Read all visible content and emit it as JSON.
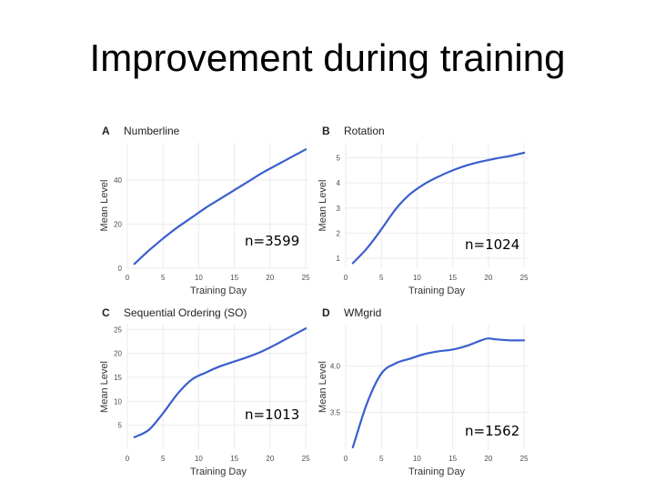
{
  "slide": {
    "title": "Improvement during training"
  },
  "accent_color": "#3a5fcd",
  "chart_data": [
    {
      "type": "line",
      "letter": "A",
      "title": "Numberline",
      "xlabel": "Training Day",
      "ylabel": "Mean Level",
      "xlim": [
        0,
        25.5
      ],
      "ylim": [
        0,
        57
      ],
      "xticks": [
        0,
        5,
        10,
        15,
        20,
        25
      ],
      "yticks": [
        0,
        20,
        40
      ],
      "grid": true,
      "annotation": "n=3599",
      "series": [
        {
          "x": [
            1,
            3,
            5,
            7,
            9,
            11,
            13,
            15,
            17,
            19,
            21,
            23,
            25
          ],
          "y": [
            2,
            8,
            13.5,
            18.5,
            23,
            27.5,
            31.5,
            35.5,
            39.5,
            43.5,
            47,
            50.5,
            54
          ]
        }
      ]
    },
    {
      "type": "line",
      "letter": "B",
      "title": "Rotation",
      "xlabel": "Training Day",
      "ylabel": "Mean Level",
      "xlim": [
        0,
        25.5
      ],
      "ylim": [
        0.6,
        5.6
      ],
      "xticks": [
        0,
        5,
        10,
        15,
        20,
        25
      ],
      "yticks": [
        1,
        2,
        3,
        4,
        5
      ],
      "grid": true,
      "annotation": "n=1024",
      "series": [
        {
          "x": [
            1,
            3,
            5,
            7,
            9,
            11,
            13,
            15,
            17,
            19,
            21,
            23,
            25
          ],
          "y": [
            0.8,
            1.4,
            2.15,
            2.95,
            3.55,
            3.95,
            4.25,
            4.5,
            4.7,
            4.85,
            4.97,
            5.07,
            5.2
          ]
        }
      ]
    },
    {
      "type": "line",
      "letter": "C",
      "title": "Sequential Ordering (SO)",
      "xlabel": "Training Day",
      "ylabel": "Mean Level",
      "xlim": [
        0,
        25.5
      ],
      "ylim": [
        0,
        26
      ],
      "xticks": [
        0,
        5,
        10,
        15,
        20,
        25
      ],
      "yticks": [
        5,
        10,
        15,
        20,
        25
      ],
      "grid": true,
      "annotation": "n=1013",
      "series": [
        {
          "x": [
            1,
            3,
            5,
            7,
            9,
            11,
            13,
            15,
            17,
            19,
            21,
            23,
            25
          ],
          "y": [
            2.5,
            4,
            7.5,
            11.5,
            14.5,
            16,
            17.3,
            18.3,
            19.3,
            20.5,
            22,
            23.6,
            25.2
          ]
        }
      ]
    },
    {
      "type": "line",
      "letter": "D",
      "title": "WMgrid",
      "xlabel": "Training Day",
      "ylabel": "Mean Level",
      "xlim": [
        0,
        25.5
      ],
      "ylim": [
        3.1,
        4.45
      ],
      "xticks": [
        0,
        5,
        10,
        15,
        20,
        25
      ],
      "yticks": [
        3.5,
        4.0
      ],
      "ytick_labels": [
        "3.5",
        "4.0"
      ],
      "grid": true,
      "annotation": "n=1562",
      "series": [
        {
          "x": [
            1,
            3,
            5,
            7,
            9,
            11,
            13,
            15,
            17,
            19,
            20,
            21,
            23,
            25
          ],
          "y": [
            3.12,
            3.6,
            3.92,
            4.03,
            4.08,
            4.13,
            4.16,
            4.18,
            4.22,
            4.28,
            4.3,
            4.29,
            4.28,
            4.28
          ]
        }
      ]
    }
  ]
}
